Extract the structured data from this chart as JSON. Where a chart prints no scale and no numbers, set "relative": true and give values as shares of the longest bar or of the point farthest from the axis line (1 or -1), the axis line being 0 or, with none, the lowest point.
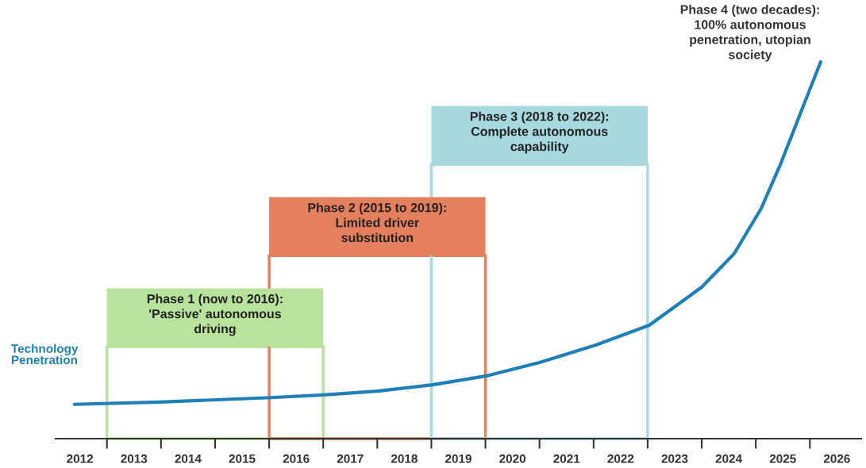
{
  "chart_data": {
    "type": "line",
    "relative": true,
    "x": [
      2011.9,
      2013.47,
      2015.53,
      2016.5,
      2017.5,
      2018.52,
      2019.5,
      2020.5,
      2021.53,
      2022.53,
      2023.5,
      2024.1,
      2024.6,
      2024.97,
      2025.34,
      2025.7
    ],
    "series": [
      {
        "name": "Technology\nPenetration",
        "color": "#1f80b8",
        "values": [
          0.091,
          0.097,
          0.109,
          0.116,
          0.126,
          0.143,
          0.166,
          0.202,
          0.248,
          0.301,
          0.402,
          0.491,
          0.611,
          0.733,
          0.869,
          1
        ]
      }
    ],
    "xlim": [
      2011.55,
      2026.45
    ],
    "xticks": [
      2012,
      {
        "value": 2012.5,
        "label": null
      },
      2013,
      {
        "value": 2013.5,
        "label": null
      },
      2014,
      {
        "value": 2014.5,
        "label": null
      },
      2015,
      {
        "value": 2015.5,
        "label": null
      },
      2016,
      {
        "value": 2016.5,
        "label": null
      },
      2017,
      {
        "value": 2017.5,
        "label": null
      },
      2018,
      {
        "value": 2018.5,
        "label": null
      },
      2019,
      {
        "value": 2019.5,
        "label": null
      },
      2020,
      {
        "value": 2020.5,
        "label": null
      },
      2021,
      {
        "value": 2021.5,
        "label": null
      },
      2022,
      {
        "value": 2022.5,
        "label": null
      },
      2023,
      {
        "value": 2023.5,
        "label": null
      },
      2024,
      {
        "value": 2024.5,
        "label": null
      },
      2025,
      {
        "value": 2025.5,
        "label": null
      },
      2026
    ],
    "bands": [
      {
        "axis": "x",
        "from": 2012.5,
        "to": 2016.5,
        "label": "Phase 1 (now to 2016):\n'Passive' autonomous\ndriving",
        "color": "#b9e29c"
      },
      {
        "axis": "x",
        "from": 2015.5,
        "to": 2019.5,
        "label": "Phase 2 (2015 to 2019):\nLimited driver\nsubstitution",
        "color": "#e5805e"
      },
      {
        "axis": "x",
        "from": 2018.5,
        "to": 2022.5,
        "label": "Phase 3 (2018 to 2022):\nComplete autonomous\ncapability",
        "color": "#a8d8e0"
      }
    ],
    "annotations": [
      "Phase 4 (two decades):\n100% autonomous\npenetration, utopian\nsociety"
    ],
    "grid": false,
    "legend": false,
    "marker": "none",
    "line_style": "solid"
  }
}
